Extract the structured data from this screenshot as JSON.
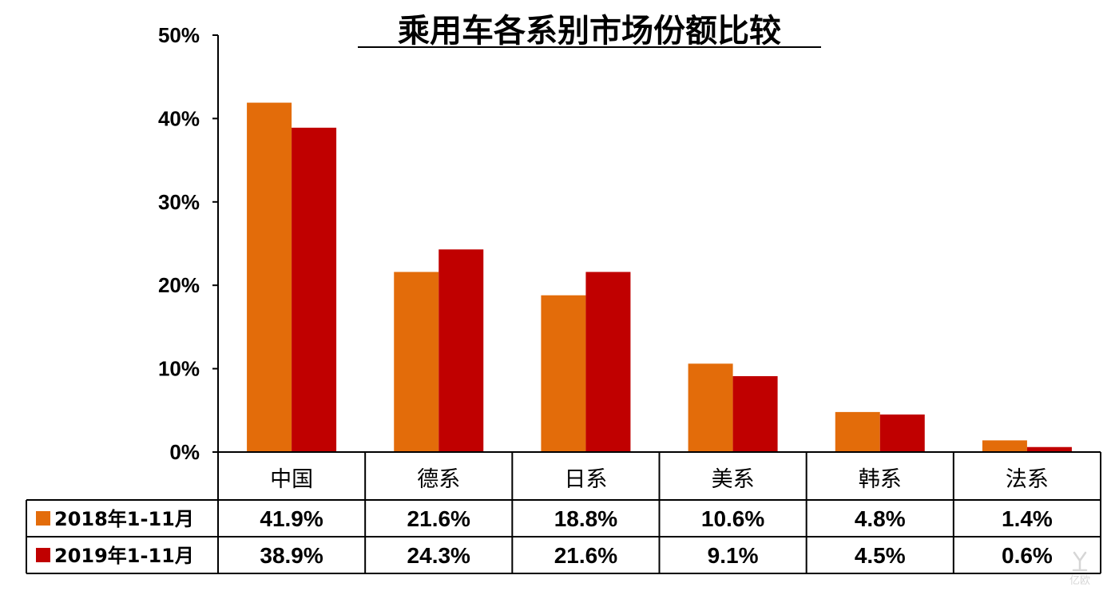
{
  "chart_data": {
    "type": "bar",
    "title": "乘用车各系别市场份额比较",
    "categories": [
      "中国",
      "德系",
      "日系",
      "美系",
      "韩系",
      "法系"
    ],
    "series": [
      {
        "name": "2018年1-11月",
        "values": [
          41.9,
          21.6,
          18.8,
          10.6,
          4.8,
          1.4
        ],
        "labels": [
          "41.9%",
          "21.6%",
          "18.8%",
          "10.6%",
          "4.8%",
          "1.4%"
        ],
        "color": "#E36C0A"
      },
      {
        "name": "2019年1-11月",
        "values": [
          38.9,
          24.3,
          21.6,
          9.1,
          4.5,
          0.6
        ],
        "labels": [
          "38.9%",
          "24.3%",
          "21.6%",
          "9.1%",
          "4.5%",
          "0.6%"
        ],
        "color": "#C00000"
      }
    ],
    "ylim": [
      0,
      50
    ],
    "yticks": [
      "0%",
      "10%",
      "20%",
      "30%",
      "40%",
      "50%"
    ],
    "ytick_values": [
      0,
      10,
      20,
      30,
      40,
      50
    ],
    "grid": false,
    "legend": "data-table-left",
    "data_table": true
  },
  "watermark": "亿欧"
}
